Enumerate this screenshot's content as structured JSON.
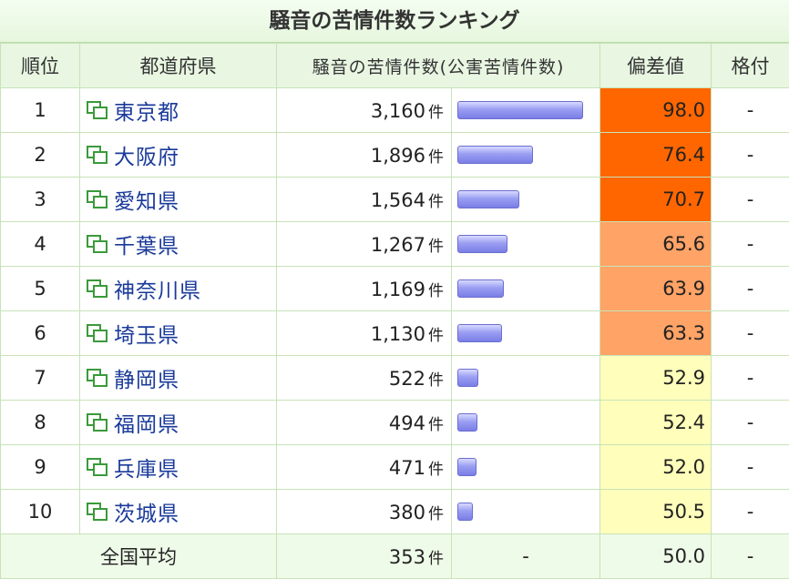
{
  "title": "騒音の苦情件数ランキング",
  "headers": {
    "rank": "順位",
    "prefecture": "都道府県",
    "count": "騒音の苦情件数(公害苦情件数)",
    "deviation": "偏差値",
    "grade": "格付"
  },
  "unit": "件",
  "bar_max": 3160,
  "colors": {
    "dev_high": "#ff6600",
    "dev_mid": "#ffa366",
    "dev_low": "#ffffbb",
    "header_bg": "#e8f6e2",
    "avg_bg": "#effbe9"
  },
  "rows": [
    {
      "rank": "1",
      "name": "東京都",
      "count": "3,160",
      "value": 3160,
      "deviation": "98.0",
      "grade": "-",
      "level": "high"
    },
    {
      "rank": "2",
      "name": "大阪府",
      "count": "1,896",
      "value": 1896,
      "deviation": "76.4",
      "grade": "-",
      "level": "high"
    },
    {
      "rank": "3",
      "name": "愛知県",
      "count": "1,564",
      "value": 1564,
      "deviation": "70.7",
      "grade": "-",
      "level": "high"
    },
    {
      "rank": "4",
      "name": "千葉県",
      "count": "1,267",
      "value": 1267,
      "deviation": "65.6",
      "grade": "-",
      "level": "mid"
    },
    {
      "rank": "5",
      "name": "神奈川県",
      "count": "1,169",
      "value": 1169,
      "deviation": "63.9",
      "grade": "-",
      "level": "mid"
    },
    {
      "rank": "6",
      "name": "埼玉県",
      "count": "1,130",
      "value": 1130,
      "deviation": "63.3",
      "grade": "-",
      "level": "mid"
    },
    {
      "rank": "7",
      "name": "静岡県",
      "count": "522",
      "value": 522,
      "deviation": "52.9",
      "grade": "-",
      "level": "low"
    },
    {
      "rank": "8",
      "name": "福岡県",
      "count": "494",
      "value": 494,
      "deviation": "52.4",
      "grade": "-",
      "level": "low"
    },
    {
      "rank": "9",
      "name": "兵庫県",
      "count": "471",
      "value": 471,
      "deviation": "52.0",
      "grade": "-",
      "level": "low"
    },
    {
      "rank": "10",
      "name": "茨城県",
      "count": "380",
      "value": 380,
      "deviation": "50.5",
      "grade": "-",
      "level": "low"
    }
  ],
  "average": {
    "label": "全国平均",
    "count": "353",
    "bar": "-",
    "deviation": "50.0",
    "grade": "-"
  }
}
